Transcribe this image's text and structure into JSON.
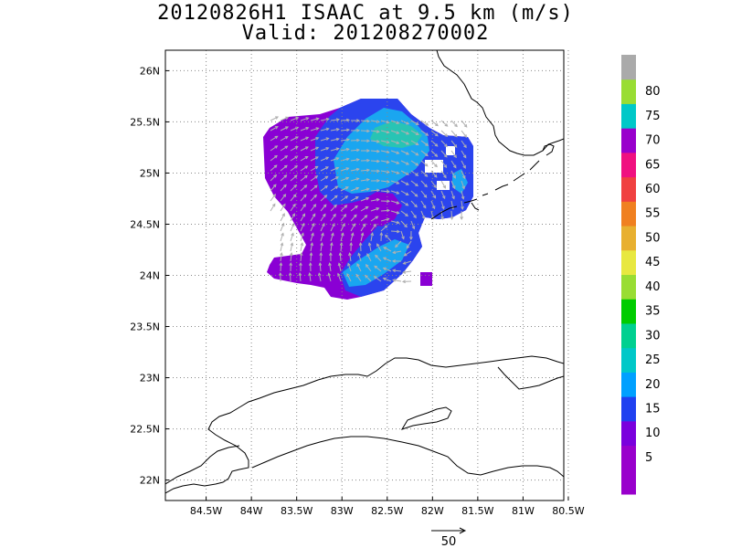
{
  "title": {
    "line1": "20120826H1 ISAAC at 9.5 km (m/s)",
    "line2": "Valid: 201208270002"
  },
  "map": {
    "lat_range": [
      21.8,
      26.2
    ],
    "lon_range": [
      -84.95,
      -80.55
    ],
    "grid": "dotted",
    "lat_ticks": [
      {
        "value": 26,
        "label": "26N"
      },
      {
        "value": 25.5,
        "label": "25.5N"
      },
      {
        "value": 25,
        "label": "25N"
      },
      {
        "value": 24.5,
        "label": "24.5N"
      },
      {
        "value": 24,
        "label": "24N"
      },
      {
        "value": 23.5,
        "label": "23.5N"
      },
      {
        "value": 23,
        "label": "23N"
      },
      {
        "value": 22.5,
        "label": "22.5N"
      },
      {
        "value": 22,
        "label": "22N"
      }
    ],
    "lon_ticks": [
      {
        "value": -84.5,
        "label": "84.5W"
      },
      {
        "value": -84,
        "label": "84W"
      },
      {
        "value": -83.5,
        "label": "83.5W"
      },
      {
        "value": -83,
        "label": "83W"
      },
      {
        "value": -82.5,
        "label": "82.5W"
      },
      {
        "value": -82,
        "label": "82W"
      },
      {
        "value": -81.5,
        "label": "81.5W"
      },
      {
        "value": -81,
        "label": "81W"
      },
      {
        "value": -80.5,
        "label": "80.5W"
      }
    ]
  },
  "colorbar": {
    "levels": [
      {
        "label": "",
        "color": "#9900cc"
      },
      {
        "label": "5",
        "color": "#9900cc"
      },
      {
        "label": "10",
        "color": "#7a00dd"
      },
      {
        "label": "15",
        "color": "#2040f0"
      },
      {
        "label": "20",
        "color": "#00a0ff"
      },
      {
        "label": "25",
        "color": "#00c8c8"
      },
      {
        "label": "30",
        "color": "#00d090"
      },
      {
        "label": "35",
        "color": "#00cc00"
      },
      {
        "label": "40",
        "color": "#99dd33"
      },
      {
        "label": "45",
        "color": "#e8e840"
      },
      {
        "label": "50",
        "color": "#e8b030"
      },
      {
        "label": "55",
        "color": "#f08020"
      },
      {
        "label": "60",
        "color": "#f04040"
      },
      {
        "label": "65",
        "color": "#f01080"
      },
      {
        "label": "70",
        "color": "#9900cc"
      },
      {
        "label": "75",
        "color": "#00c8c8"
      },
      {
        "label": "80",
        "color": "#99dd33"
      },
      {
        "label": "",
        "color": "#aaaaaa"
      }
    ]
  },
  "vector_scale": {
    "label": "50"
  }
}
